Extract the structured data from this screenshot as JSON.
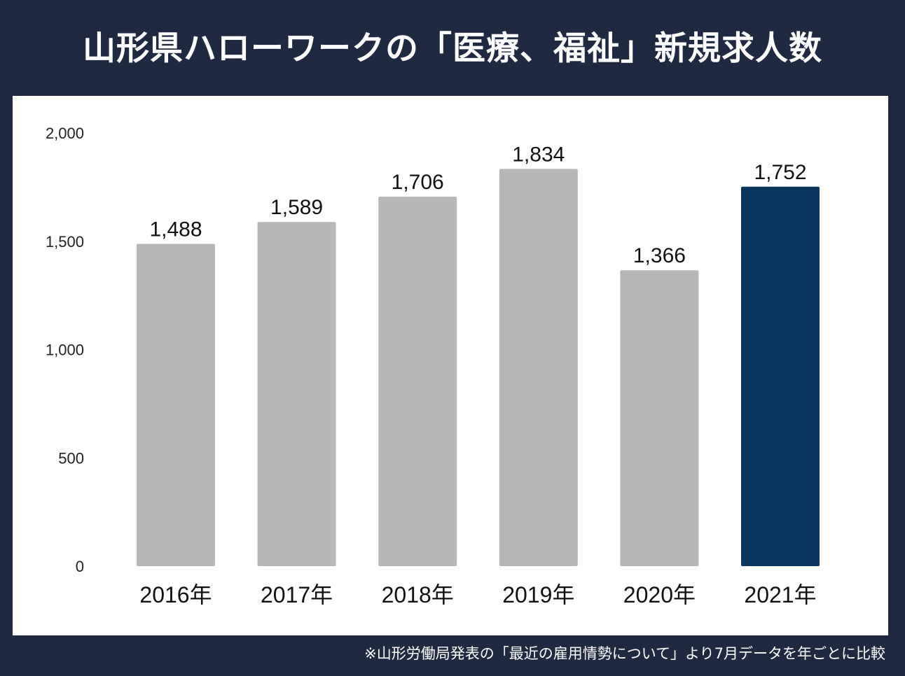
{
  "title": "山形県ハローワークの「医療、福祉」新規求人数",
  "note": "※山形労働局発表の「最近の雇用情勢について」より7月データを年ごとに比較",
  "colors": {
    "background": "#1f2a42",
    "bar": "#b7b7b7",
    "highlight": "#0b365f"
  },
  "chart_data": {
    "type": "bar",
    "title": "山形県ハローワークの「医療、福祉」新規求人数",
    "categories": [
      "2016年",
      "2017年",
      "2018年",
      "2019年",
      "2020年",
      "2021年"
    ],
    "values": [
      1488,
      1589,
      1706,
      1834,
      1366,
      1752
    ],
    "data_labels": [
      "1,488",
      "1,589",
      "1,706",
      "1,834",
      "1,366",
      "1,752"
    ],
    "highlight_index": 5,
    "yticks": [
      0,
      500,
      1000,
      1500,
      2000
    ],
    "ytick_labels": [
      "0",
      "500",
      "1,000",
      "1,500",
      "2,000"
    ],
    "ylim": [
      0,
      2000
    ],
    "grid": false,
    "legend": "none"
  }
}
